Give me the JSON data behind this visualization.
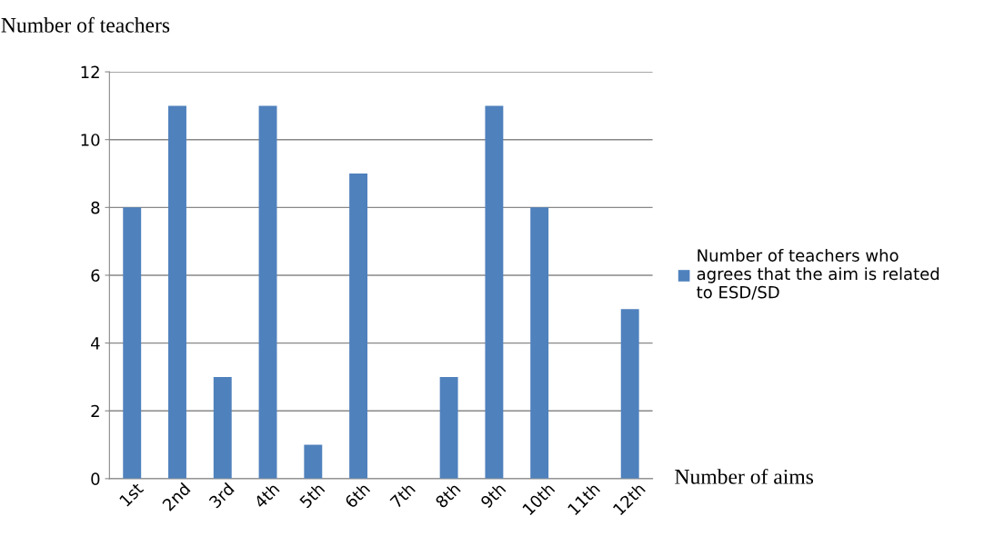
{
  "chart_data": {
    "type": "bar",
    "xlabel": "Number of aims",
    "ylabel": "Number of teachers",
    "categories": [
      "1st",
      "2nd",
      "3rd",
      "4th",
      "5th",
      "6th",
      "7th",
      "8th",
      "9th",
      "10th",
      "11th",
      "12th"
    ],
    "series": [
      {
        "name": "Number of teachers who\nagrees that the aim is related\nto ESD/SD",
        "color": "#4f81bd",
        "values": [
          8,
          11,
          3,
          11,
          1,
          9,
          0,
          3,
          11,
          8,
          0,
          5
        ]
      }
    ],
    "ylim": [
      0,
      12
    ],
    "yticks": [
      0,
      2,
      4,
      6,
      8,
      10,
      12
    ],
    "grid": "y",
    "legend": "right"
  }
}
